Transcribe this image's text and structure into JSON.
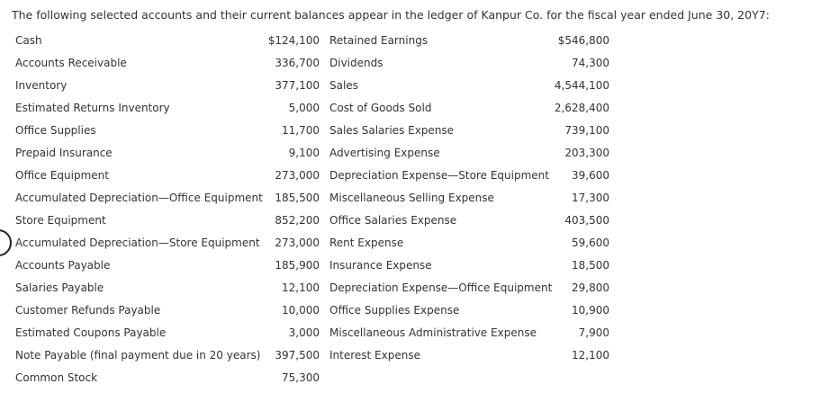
{
  "intro": "The following selected accounts and their current balances appear in the ledger of Kanpur Co. for the fiscal year ended June 30, 20Y7:",
  "rows": [
    {
      "left_name": "Cash",
      "left_amount": "$124,100",
      "right_name": "Retained Earnings",
      "right_amount": "$546,800"
    },
    {
      "left_name": "Accounts Receivable",
      "left_amount": "336,700",
      "right_name": "Dividends",
      "right_amount": "74,300"
    },
    {
      "left_name": "Inventory",
      "left_amount": "377,100",
      "right_name": "Sales",
      "right_amount": "4,544,100"
    },
    {
      "left_name": "Estimated Returns Inventory",
      "left_amount": "5,000",
      "right_name": "Cost of Goods Sold",
      "right_amount": "2,628,400"
    },
    {
      "left_name": "Office Supplies",
      "left_amount": "11,700",
      "right_name": "Sales Salaries Expense",
      "right_amount": "739,100"
    },
    {
      "left_name": "Prepaid Insurance",
      "left_amount": "9,100",
      "right_name": "Advertising Expense",
      "right_amount": "203,300"
    },
    {
      "left_name": "Office Equipment",
      "left_amount": "273,000",
      "right_name": "Depreciation Expense—Store Equipment",
      "right_amount": "39,600"
    },
    {
      "left_name": "Accumulated Depreciation—Office Equipment",
      "left_amount": "185,500",
      "right_name": "Miscellaneous Selling Expense",
      "right_amount": "17,300"
    },
    {
      "left_name": "Store Equipment",
      "left_amount": "852,200",
      "right_name": "Office Salaries Expense",
      "right_amount": "403,500"
    },
    {
      "left_name": "Accumulated Depreciation—Store Equipment",
      "left_amount": "273,000",
      "right_name": "Rent Expense",
      "right_amount": "59,600"
    },
    {
      "left_name": "Accounts Payable",
      "left_amount": "185,900",
      "right_name": "Insurance Expense",
      "right_amount": "18,500"
    },
    {
      "left_name": "Salaries Payable",
      "left_amount": "12,100",
      "right_name": "Depreciation Expense—Office Equipment",
      "right_amount": "29,800"
    },
    {
      "left_name": "Customer Refunds Payable",
      "left_amount": "10,000",
      "right_name": "Office Supplies Expense",
      "right_amount": "10,900"
    },
    {
      "left_name": "Estimated Coupons Payable",
      "left_amount": "3,000",
      "right_name": "Miscellaneous Administrative Expense",
      "right_amount": "7,900"
    },
    {
      "left_name": "Note Payable (final payment due in 20 years)",
      "left_amount": "397,500",
      "right_name": "Interest Expense",
      "right_amount": "12,100"
    },
    {
      "left_name": "Common Stock",
      "left_amount": "75,300",
      "right_name": "",
      "right_amount": ""
    }
  ]
}
